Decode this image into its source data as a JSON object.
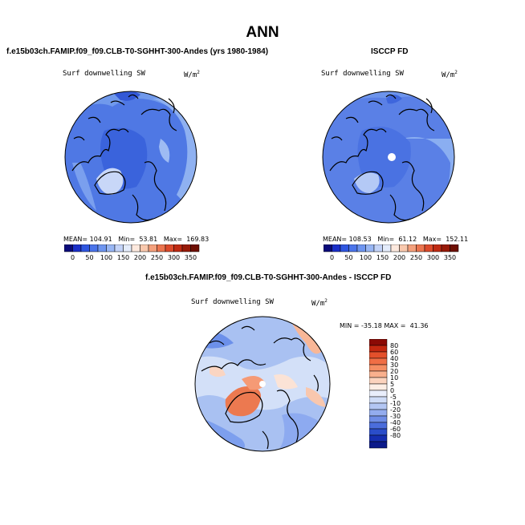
{
  "title": "ANN",
  "panel_left": {
    "case_label": "f.e15b03ch.FAMIP.f09_f09.CLB-T0-SGHHT-300-Andes (yrs 1980-1984)",
    "variable": "Surf downwelling SW",
    "units": "W/m",
    "units_sup": "2",
    "mean": "104.91",
    "min": "53.81",
    "max": "169.83"
  },
  "panel_right": {
    "case_label": "ISCCP FD",
    "variable": "Surf downwelling SW",
    "units": "W/m",
    "units_sup": "2",
    "mean": "108.53",
    "min": "61.12",
    "max": "152.11"
  },
  "panel_diff": {
    "case_label": "f.e15b03ch.FAMIP.f09_f09.CLB-T0-SGHHT-300-Andes - ISCCP FD",
    "variable": "Surf downwelling SW",
    "units": "W/m",
    "units_sup": "2",
    "min": "-35.18",
    "max": "41.36"
  },
  "labels": {
    "mean_label": "MEAN=",
    "min_label": "Min=",
    "max_label": "Max=",
    "min_upper": "MIN =",
    "max_upper": "MAX ="
  },
  "field_colorbar": {
    "ticks": [
      "0",
      "50",
      "100",
      "150",
      "200",
      "250",
      "300",
      "350"
    ],
    "colors": [
      "#0b0b7a",
      "#1a2fc8",
      "#2f56e0",
      "#4a74ea",
      "#6e95f0",
      "#98b6f4",
      "#c3d3f8",
      "#e4ecfb",
      "#fde9de",
      "#f9c8ad",
      "#f4a07c",
      "#ec754f",
      "#dc4a2b",
      "#bf2a12",
      "#971a08",
      "#6e0f03"
    ]
  },
  "diff_colorbar": {
    "ticks": [
      "80",
      "60",
      "40",
      "30",
      "20",
      "10",
      "5",
      "0",
      "-5",
      "-10",
      "-20",
      "-30",
      "-40",
      "-60",
      "-80"
    ],
    "colors": [
      "#8b0a05",
      "#c42810",
      "#e4502b",
      "#f06e45",
      "#f58e63",
      "#f9b08d",
      "#fbd3bd",
      "#fdeee4",
      "#e9eefb",
      "#cfdcf7",
      "#b3c6f3",
      "#93acee",
      "#6f8de6",
      "#4b6ddc",
      "#2a4dc9",
      "#152eb0",
      "#0b1a8a"
    ]
  }
}
